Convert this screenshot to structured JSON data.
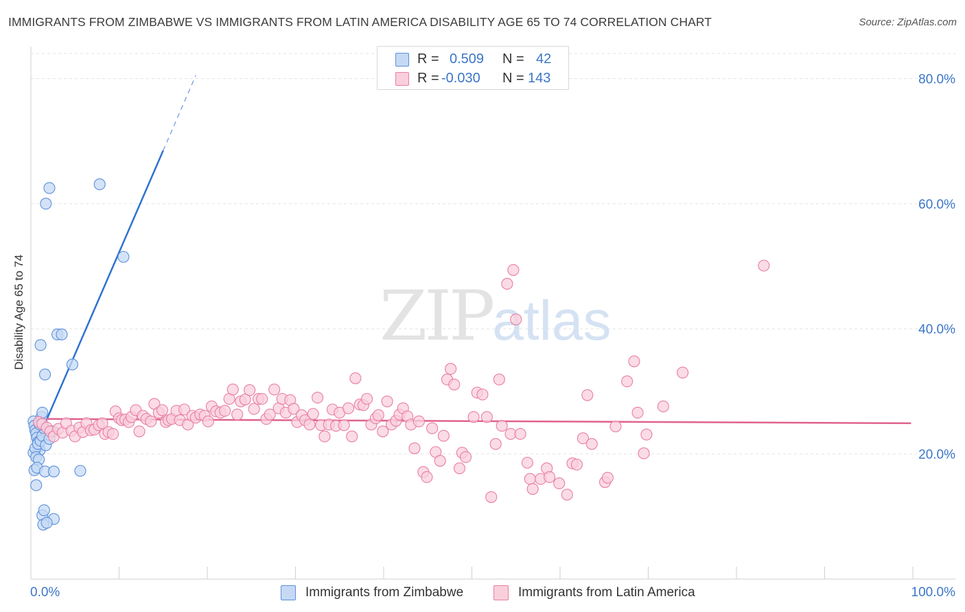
{
  "title": "IMMIGRANTS FROM ZIMBABWE VS IMMIGRANTS FROM LATIN AMERICA DISABILITY AGE 65 TO 74 CORRELATION CHART",
  "source": "Source: ZipAtlas.com",
  "watermark": {
    "zip": "ZIP",
    "atlas": "atlas"
  },
  "legend": [
    {
      "r_label": "R =",
      "r_value": "0.509",
      "n_label": "N =",
      "n_value": "42",
      "color": "#5b8fd9",
      "fill": "#c5d9f5"
    },
    {
      "r_label": "R =",
      "r_value": "-0.030",
      "n_label": "N =",
      "n_value": "143",
      "color": "#e87ea1",
      "fill": "#f9cfdc"
    }
  ],
  "chart_data": {
    "type": "scatter",
    "title": "IMMIGRANTS FROM ZIMBABWE VS IMMIGRANTS FROM LATIN AMERICA DISABILITY AGE 65 TO 74 CORRELATION CHART",
    "ylabel": "Disability Age 65 to 74",
    "xlabel": "",
    "xlim": [
      0,
      100
    ],
    "ylim": [
      0,
      84
    ],
    "x_tick_labels": [
      "0.0%",
      "100.0%"
    ],
    "y_ticks": [
      20,
      40,
      60,
      80
    ],
    "y_tick_labels": [
      "20.0%",
      "40.0%",
      "60.0%",
      "80.0%"
    ],
    "grid": true,
    "series": [
      {
        "name": "Immigrants from Zimbabwe",
        "color": "#5b8fd9",
        "fill": "#c5d9f5",
        "trend": {
          "x": [
            0.2,
            15.0
          ],
          "y": [
            20.3,
            68.5
          ],
          "dashed_to": [
            18.7,
            80.5
          ]
        },
        "points": [
          [
            0.3,
            25.2
          ],
          [
            0.4,
            24.5
          ],
          [
            0.5,
            23.8
          ],
          [
            0.6,
            23.3
          ],
          [
            0.7,
            22.6
          ],
          [
            0.8,
            21.9
          ],
          [
            0.9,
            21.2
          ],
          [
            1.0,
            20.6
          ],
          [
            0.3,
            20.2
          ],
          [
            0.5,
            20.9
          ],
          [
            0.8,
            21.6
          ],
          [
            1.1,
            22.1
          ],
          [
            1.3,
            22.9
          ],
          [
            0.6,
            19.5
          ],
          [
            0.9,
            19.1
          ],
          [
            1.2,
            25.9
          ],
          [
            1.3,
            26.6
          ],
          [
            1.5,
            24.1
          ],
          [
            1.7,
            21.4
          ],
          [
            2.1,
            22.4
          ],
          [
            2.5,
            23.6
          ],
          [
            0.4,
            17.4
          ],
          [
            0.7,
            17.8
          ],
          [
            1.6,
            17.2
          ],
          [
            2.6,
            17.2
          ],
          [
            5.6,
            17.3
          ],
          [
            0.6,
            15.0
          ],
          [
            1.3,
            10.2
          ],
          [
            1.5,
            11.0
          ],
          [
            2.6,
            9.6
          ],
          [
            1.4,
            8.7
          ],
          [
            1.8,
            9.0
          ],
          [
            1.1,
            37.4
          ],
          [
            1.6,
            32.7
          ],
          [
            3.0,
            39.1
          ],
          [
            3.5,
            39.1
          ],
          [
            4.7,
            34.3
          ],
          [
            1.7,
            60.0
          ],
          [
            2.1,
            62.5
          ],
          [
            7.8,
            63.1
          ],
          [
            10.5,
            51.5
          ],
          [
            1.0,
            24.7
          ]
        ]
      },
      {
        "name": "Immigrants from Latin America",
        "color": "#e87ea1",
        "fill": "#f9cfdc",
        "trend": {
          "x": [
            0.5,
            99.8
          ],
          "y": [
            25.6,
            24.9
          ]
        },
        "points": [
          [
            0.9,
            25.1
          ],
          [
            1.3,
            24.8
          ],
          [
            1.8,
            24.2
          ],
          [
            2.2,
            23.6
          ],
          [
            2.6,
            22.8
          ],
          [
            3.1,
            24.0
          ],
          [
            3.6,
            23.4
          ],
          [
            4.0,
            24.9
          ],
          [
            4.6,
            23.7
          ],
          [
            5.0,
            22.8
          ],
          [
            5.5,
            24.2
          ],
          [
            5.9,
            23.5
          ],
          [
            6.3,
            24.9
          ],
          [
            6.8,
            23.8
          ],
          [
            7.2,
            23.9
          ],
          [
            7.7,
            24.6
          ],
          [
            8.1,
            24.9
          ],
          [
            8.4,
            23.2
          ],
          [
            8.8,
            23.5
          ],
          [
            9.3,
            23.2
          ],
          [
            9.6,
            26.8
          ],
          [
            10.0,
            25.7
          ],
          [
            10.3,
            25.4
          ],
          [
            10.7,
            25.5
          ],
          [
            11.1,
            25.1
          ],
          [
            11.4,
            25.9
          ],
          [
            11.9,
            27.0
          ],
          [
            12.3,
            23.6
          ],
          [
            12.7,
            26.1
          ],
          [
            13.1,
            25.6
          ],
          [
            13.6,
            25.2
          ],
          [
            14.0,
            28.0
          ],
          [
            14.5,
            26.6
          ],
          [
            14.9,
            27.0
          ],
          [
            15.3,
            25.1
          ],
          [
            15.6,
            25.4
          ],
          [
            16.0,
            25.6
          ],
          [
            16.5,
            26.9
          ],
          [
            16.9,
            25.4
          ],
          [
            17.4,
            27.1
          ],
          [
            17.8,
            24.7
          ],
          [
            18.3,
            26.1
          ],
          [
            18.7,
            25.8
          ],
          [
            19.2,
            26.3
          ],
          [
            19.7,
            26.1
          ],
          [
            20.1,
            25.2
          ],
          [
            20.5,
            27.6
          ],
          [
            21.0,
            26.8
          ],
          [
            21.5,
            26.6
          ],
          [
            22.0,
            26.9
          ],
          [
            22.5,
            28.8
          ],
          [
            22.9,
            30.3
          ],
          [
            23.4,
            26.3
          ],
          [
            23.8,
            28.4
          ],
          [
            24.3,
            28.7
          ],
          [
            24.8,
            30.2
          ],
          [
            25.3,
            27.2
          ],
          [
            25.8,
            28.8
          ],
          [
            26.2,
            28.8
          ],
          [
            26.7,
            25.6
          ],
          [
            27.1,
            26.3
          ],
          [
            27.6,
            30.3
          ],
          [
            28.1,
            27.3
          ],
          [
            28.5,
            28.8
          ],
          [
            28.9,
            26.6
          ],
          [
            29.4,
            28.6
          ],
          [
            29.8,
            27.2
          ],
          [
            30.2,
            25.1
          ],
          [
            30.7,
            26.2
          ],
          [
            31.1,
            25.4
          ],
          [
            31.6,
            24.7
          ],
          [
            32.0,
            26.4
          ],
          [
            32.5,
            29.0
          ],
          [
            32.9,
            24.6
          ],
          [
            33.3,
            22.8
          ],
          [
            33.8,
            24.7
          ],
          [
            34.2,
            27.1
          ],
          [
            34.6,
            24.5
          ],
          [
            35.0,
            26.6
          ],
          [
            35.5,
            24.6
          ],
          [
            36.0,
            27.3
          ],
          [
            36.4,
            22.8
          ],
          [
            36.8,
            32.1
          ],
          [
            37.3,
            27.9
          ],
          [
            37.7,
            27.8
          ],
          [
            38.1,
            28.8
          ],
          [
            38.6,
            24.7
          ],
          [
            39.1,
            25.7
          ],
          [
            39.4,
            26.2
          ],
          [
            39.9,
            23.6
          ],
          [
            40.4,
            28.4
          ],
          [
            40.9,
            24.7
          ],
          [
            41.4,
            25.3
          ],
          [
            41.8,
            26.3
          ],
          [
            42.2,
            27.3
          ],
          [
            42.7,
            26.0
          ],
          [
            43.1,
            24.7
          ],
          [
            43.5,
            20.9
          ],
          [
            44.0,
            25.2
          ],
          [
            44.5,
            17.1
          ],
          [
            44.9,
            16.3
          ],
          [
            45.5,
            24.1
          ],
          [
            45.9,
            20.3
          ],
          [
            46.4,
            18.9
          ],
          [
            46.8,
            22.9
          ],
          [
            47.2,
            31.9
          ],
          [
            47.6,
            33.6
          ],
          [
            48.0,
            31.1
          ],
          [
            48.6,
            17.7
          ],
          [
            48.9,
            20.2
          ],
          [
            49.3,
            19.5
          ],
          [
            50.2,
            25.9
          ],
          [
            50.6,
            29.8
          ],
          [
            51.2,
            29.5
          ],
          [
            51.7,
            25.9
          ],
          [
            52.2,
            13.1
          ],
          [
            52.7,
            21.6
          ],
          [
            53.1,
            31.9
          ],
          [
            53.4,
            24.5
          ],
          [
            54.0,
            47.2
          ],
          [
            54.4,
            23.2
          ],
          [
            54.7,
            49.4
          ],
          [
            55.0,
            41.5
          ],
          [
            55.5,
            23.2
          ],
          [
            56.3,
            18.6
          ],
          [
            56.6,
            16.0
          ],
          [
            56.9,
            14.4
          ],
          [
            57.8,
            16.0
          ],
          [
            58.5,
            17.7
          ],
          [
            58.8,
            16.3
          ],
          [
            59.9,
            15.3
          ],
          [
            60.8,
            13.5
          ],
          [
            61.4,
            18.5
          ],
          [
            61.9,
            18.3
          ],
          [
            62.6,
            22.5
          ],
          [
            63.1,
            29.4
          ],
          [
            63.6,
            21.6
          ],
          [
            65.1,
            15.5
          ],
          [
            65.4,
            16.2
          ],
          [
            66.3,
            24.4
          ],
          [
            67.6,
            31.6
          ],
          [
            68.4,
            34.8
          ],
          [
            68.8,
            26.6
          ],
          [
            69.5,
            20.1
          ],
          [
            69.8,
            23.1
          ],
          [
            71.7,
            27.6
          ],
          [
            73.9,
            33.0
          ],
          [
            83.1,
            50.1
          ]
        ]
      }
    ]
  }
}
